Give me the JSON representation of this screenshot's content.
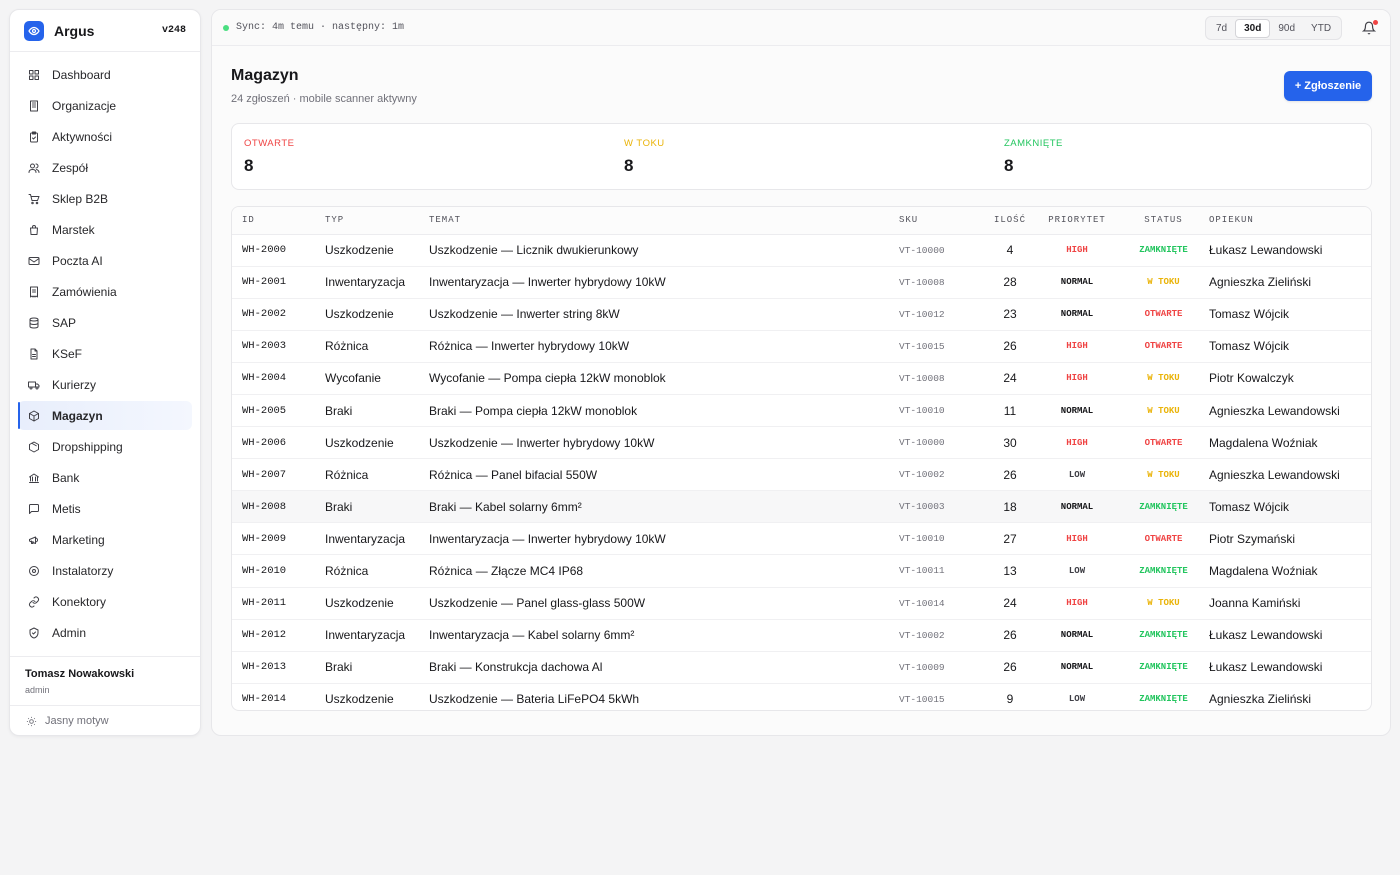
{
  "app": {
    "name": "Argus",
    "version": "v248"
  },
  "colors": {
    "accent": "#2563eb",
    "open": "#ef4444",
    "progress": "#eab308",
    "closed": "#22c55e",
    "sync": "#4ade80"
  },
  "sidebar": {
    "items": [
      {
        "label": "Dashboard",
        "icon": "grid-icon"
      },
      {
        "label": "Organizacje",
        "icon": "building-icon"
      },
      {
        "label": "Aktywności",
        "icon": "clipboard-icon"
      },
      {
        "label": "Zespół",
        "icon": "users-icon"
      },
      {
        "label": "Sklep B2B",
        "icon": "cart-icon"
      },
      {
        "label": "Marstek",
        "icon": "bag-icon"
      },
      {
        "label": "Poczta AI",
        "icon": "mail-icon"
      },
      {
        "label": "Zamówienia",
        "icon": "receipt-icon"
      },
      {
        "label": "SAP",
        "icon": "database-icon"
      },
      {
        "label": "KSeF",
        "icon": "file-icon"
      },
      {
        "label": "Kurierzy",
        "icon": "truck-icon"
      },
      {
        "label": "Magazyn",
        "icon": "box-icon",
        "active": true
      },
      {
        "label": "Dropshipping",
        "icon": "package-icon"
      },
      {
        "label": "Bank",
        "icon": "bank-icon"
      },
      {
        "label": "Metis",
        "icon": "chat-icon"
      },
      {
        "label": "Marketing",
        "icon": "megaphone-icon"
      },
      {
        "label": "Instalatorzy",
        "icon": "pin-icon"
      },
      {
        "label": "Konektory",
        "icon": "link-icon"
      },
      {
        "label": "Admin",
        "icon": "shield-icon"
      }
    ],
    "user": {
      "name": "Tomasz Nowakowski",
      "role": "admin"
    },
    "theme_label": "Jasny motyw"
  },
  "topbar": {
    "sync": "Sync: 4m temu · następny: 1m",
    "ranges": [
      "7d",
      "30d",
      "90d",
      "YTD"
    ],
    "active_range": "30d"
  },
  "page": {
    "title": "Magazyn",
    "subtitle": "24 zgłoszeń · mobile scanner aktywny",
    "new_button": "+ Zgłoszenie"
  },
  "stats": [
    {
      "label": "OTWARTE",
      "value": "8",
      "color": "#ef4444"
    },
    {
      "label": "W TOKU",
      "value": "8",
      "color": "#eab308"
    },
    {
      "label": "ZAMKNIĘTE",
      "value": "8",
      "color": "#22c55e"
    }
  ],
  "table": {
    "columns": [
      "ID",
      "TYP",
      "TEMAT",
      "SKU",
      "ILOŚĆ",
      "PRIORYTET",
      "STATUS",
      "OPIEKUN"
    ],
    "rows": [
      [
        "WH-2000",
        "Uszkodzenie",
        "Uszkodzenie — Licznik dwukierunkowy",
        "VT-10000",
        "4",
        "HIGH",
        "ZAMKNIĘTE",
        "Łukasz Lewandowski"
      ],
      [
        "WH-2001",
        "Inwentaryzacja",
        "Inwentaryzacja — Inwerter hybrydowy 10kW",
        "VT-10008",
        "28",
        "NORMAL",
        "W TOKU",
        "Agnieszka Zieliński"
      ],
      [
        "WH-2002",
        "Uszkodzenie",
        "Uszkodzenie — Inwerter string 8kW",
        "VT-10012",
        "23",
        "NORMAL",
        "OTWARTE",
        "Tomasz Wójcik"
      ],
      [
        "WH-2003",
        "Różnica",
        "Różnica — Inwerter hybrydowy 10kW",
        "VT-10015",
        "26",
        "HIGH",
        "OTWARTE",
        "Tomasz Wójcik"
      ],
      [
        "WH-2004",
        "Wycofanie",
        "Wycofanie — Pompa ciepła 12kW monoblok",
        "VT-10008",
        "24",
        "HIGH",
        "W TOKU",
        "Piotr Kowalczyk"
      ],
      [
        "WH-2005",
        "Braki",
        "Braki — Pompa ciepła 12kW monoblok",
        "VT-10010",
        "11",
        "NORMAL",
        "W TOKU",
        "Agnieszka Lewandowski"
      ],
      [
        "WH-2006",
        "Uszkodzenie",
        "Uszkodzenie — Inwerter hybrydowy 10kW",
        "VT-10000",
        "30",
        "HIGH",
        "OTWARTE",
        "Magdalena Woźniak"
      ],
      [
        "WH-2007",
        "Różnica",
        "Różnica — Panel bifacial 550W",
        "VT-10002",
        "26",
        "LOW",
        "W TOKU",
        "Agnieszka Lewandowski"
      ],
      [
        "WH-2008",
        "Braki",
        "Braki — Kabel solarny 6mm²",
        "VT-10003",
        "18",
        "NORMAL",
        "ZAMKNIĘTE",
        "Tomasz Wójcik"
      ],
      [
        "WH-2009",
        "Inwentaryzacja",
        "Inwentaryzacja — Inwerter hybrydowy 10kW",
        "VT-10010",
        "27",
        "HIGH",
        "OTWARTE",
        "Piotr Szymański"
      ],
      [
        "WH-2010",
        "Różnica",
        "Różnica — Złącze MC4 IP68",
        "VT-10011",
        "13",
        "LOW",
        "ZAMKNIĘTE",
        "Magdalena Woźniak"
      ],
      [
        "WH-2011",
        "Uszkodzenie",
        "Uszkodzenie — Panel glass-glass 500W",
        "VT-10014",
        "24",
        "HIGH",
        "W TOKU",
        "Joanna Kamiński"
      ],
      [
        "WH-2012",
        "Inwentaryzacja",
        "Inwentaryzacja — Kabel solarny 6mm²",
        "VT-10002",
        "26",
        "NORMAL",
        "ZAMKNIĘTE",
        "Łukasz Lewandowski"
      ],
      [
        "WH-2013",
        "Braki",
        "Braki — Konstrukcja dachowa Al",
        "VT-10009",
        "26",
        "NORMAL",
        "ZAMKNIĘTE",
        "Łukasz Lewandowski"
      ],
      [
        "WH-2014",
        "Uszkodzenie",
        "Uszkodzenie — Bateria LiFePO4 5kWh",
        "VT-10015",
        "9",
        "LOW",
        "ZAMKNIĘTE",
        "Agnieszka Zieliński"
      ]
    ]
  }
}
